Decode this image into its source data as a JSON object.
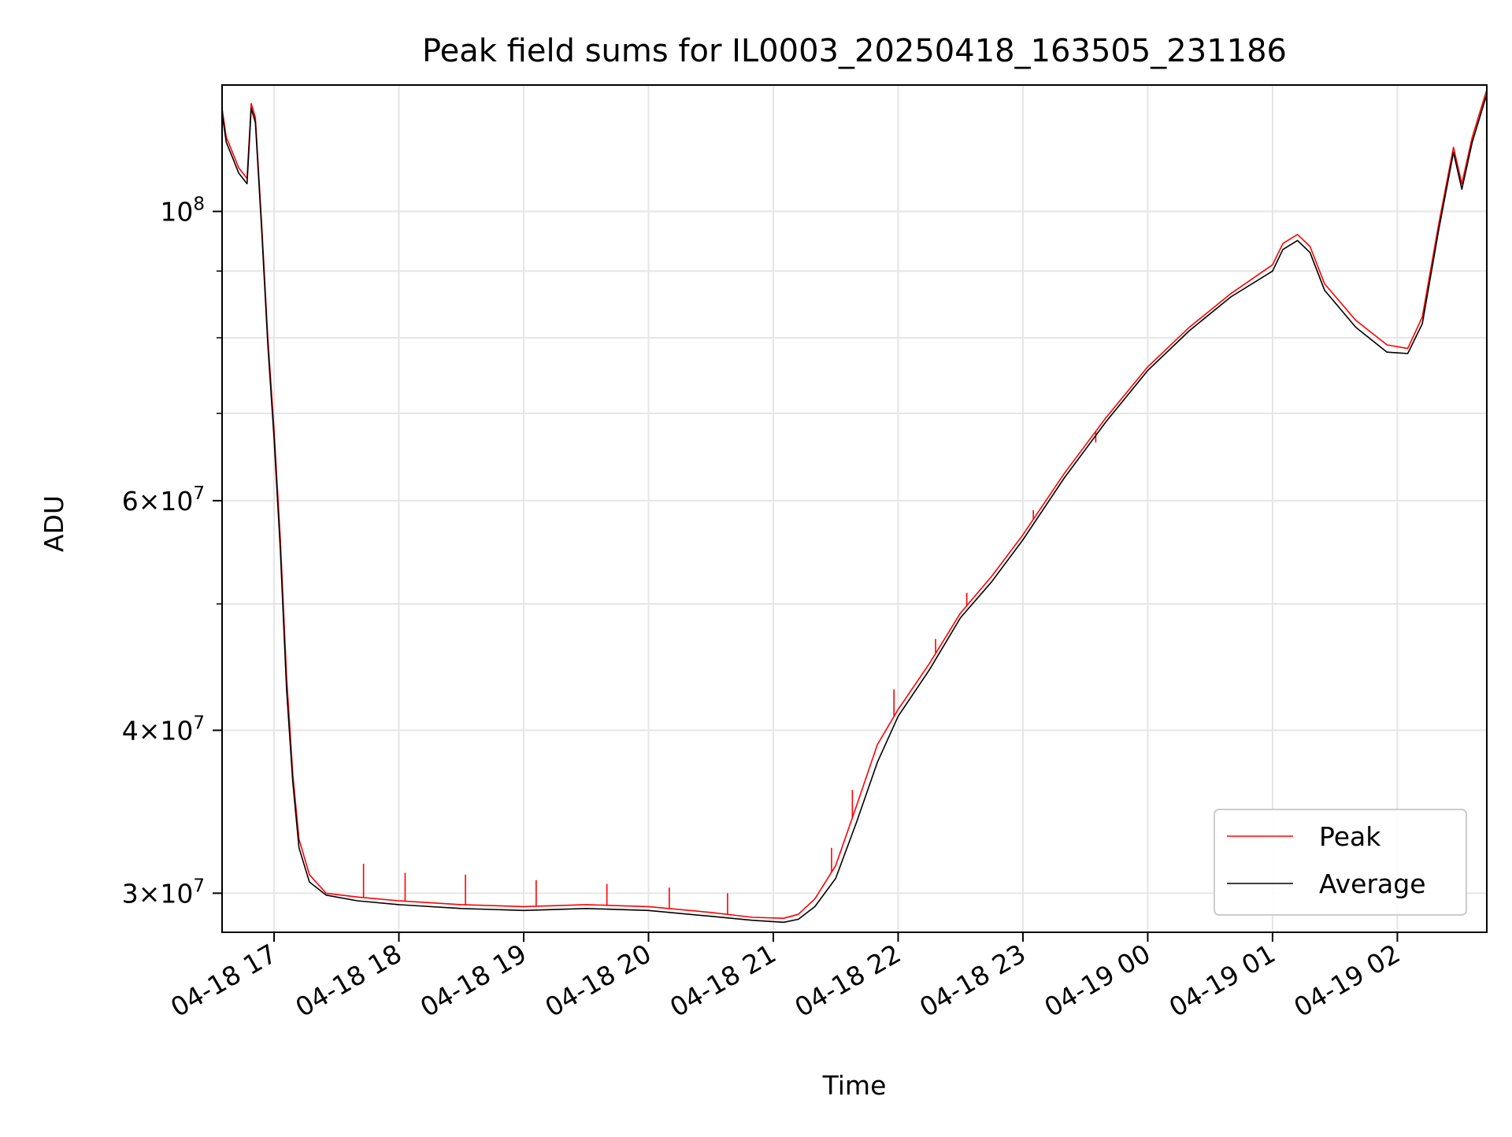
{
  "chart_data": {
    "type": "line",
    "title": "Peak field sums for IL0003_20250418_163505_231186",
    "xlabel": "Time",
    "ylabel": "ADU",
    "yscale": "log",
    "ylim": [
      28000000,
      125000000
    ],
    "xlim": [
      "2025-04-18 16:35",
      "2025-04-19 02:43"
    ],
    "grid": true,
    "legend_position": "lower right",
    "x_ticks": [
      {
        "t": "2025-04-18 17:00",
        "label": "04-18 17"
      },
      {
        "t": "2025-04-18 18:00",
        "label": "04-18 18"
      },
      {
        "t": "2025-04-18 19:00",
        "label": "04-18 19"
      },
      {
        "t": "2025-04-18 20:00",
        "label": "04-18 20"
      },
      {
        "t": "2025-04-18 21:00",
        "label": "04-18 21"
      },
      {
        "t": "2025-04-18 22:00",
        "label": "04-18 22"
      },
      {
        "t": "2025-04-18 23:00",
        "label": "04-18 23"
      },
      {
        "t": "2025-04-19 00:00",
        "label": "04-19 00"
      },
      {
        "t": "2025-04-19 01:00",
        "label": "04-19 01"
      },
      {
        "t": "2025-04-19 02:00",
        "label": "04-19 02"
      }
    ],
    "y_ticks": [
      {
        "value": 30000000,
        "mantissa": "3",
        "exponent": "7"
      },
      {
        "value": 40000000,
        "mantissa": "4",
        "exponent": "7"
      },
      {
        "value": 60000000,
        "mantissa": "6",
        "exponent": "7"
      },
      {
        "value": 100000000,
        "mantissa": "",
        "exponent": "8"
      }
    ],
    "y_minor_ticks": [
      50000000,
      70000000,
      80000000,
      90000000
    ],
    "series": [
      {
        "name": "Peak",
        "color": "#ff0000",
        "points": [
          [
            "2025-04-18 16:35",
            120000000
          ],
          [
            "2025-04-18 16:37",
            114000000
          ],
          [
            "2025-04-18 16:40",
            111000000
          ],
          [
            "2025-04-18 16:43",
            108000000
          ],
          [
            "2025-04-18 16:47",
            106000000
          ],
          [
            "2025-04-18 16:49",
            121000000
          ],
          [
            "2025-04-18 16:51",
            118000000
          ],
          [
            "2025-04-18 16:54",
            98000000
          ],
          [
            "2025-04-18 16:57",
            80000000
          ],
          [
            "2025-04-18 17:00",
            68000000
          ],
          [
            "2025-04-18 17:03",
            56000000
          ],
          [
            "2025-04-18 17:06",
            44000000
          ],
          [
            "2025-04-18 17:09",
            37000000
          ],
          [
            "2025-04-18 17:12",
            33000000
          ],
          [
            "2025-04-18 17:17",
            31000000
          ],
          [
            "2025-04-18 17:25",
            30000000
          ],
          [
            "2025-04-18 17:40",
            29800000
          ],
          [
            "2025-04-18 18:00",
            29600000
          ],
          [
            "2025-04-18 18:30",
            29400000
          ],
          [
            "2025-04-18 19:00",
            29300000
          ],
          [
            "2025-04-18 19:30",
            29400000
          ],
          [
            "2025-04-18 20:00",
            29300000
          ],
          [
            "2025-04-18 20:30",
            29000000
          ],
          [
            "2025-04-18 20:50",
            28750000
          ],
          [
            "2025-04-18 21:05",
            28700000
          ],
          [
            "2025-04-18 21:12",
            28900000
          ],
          [
            "2025-04-18 21:20",
            29700000
          ],
          [
            "2025-04-18 21:30",
            31500000
          ],
          [
            "2025-04-18 21:40",
            35000000
          ],
          [
            "2025-04-18 21:50",
            39000000
          ],
          [
            "2025-04-18 22:00",
            41500000
          ],
          [
            "2025-04-18 22:15",
            45000000
          ],
          [
            "2025-04-18 22:30",
            49200000
          ],
          [
            "2025-04-18 22:45",
            52500000
          ],
          [
            "2025-04-18 23:00",
            56500000
          ],
          [
            "2025-04-18 23:20",
            63000000
          ],
          [
            "2025-04-18 23:40",
            69500000
          ],
          [
            "2025-04-19 00:00",
            76000000
          ],
          [
            "2025-04-19 00:20",
            81500000
          ],
          [
            "2025-04-19 00:40",
            86500000
          ],
          [
            "2025-04-19 01:00",
            91000000
          ],
          [
            "2025-04-19 01:05",
            94500000
          ],
          [
            "2025-04-19 01:12",
            96000000
          ],
          [
            "2025-04-19 01:18",
            94000000
          ],
          [
            "2025-04-19 01:25",
            88000000
          ],
          [
            "2025-04-19 01:40",
            82500000
          ],
          [
            "2025-04-19 01:55",
            79000000
          ],
          [
            "2025-04-19 02:05",
            78500000
          ],
          [
            "2025-04-19 02:12",
            83000000
          ],
          [
            "2025-04-19 02:20",
            98000000
          ],
          [
            "2025-04-19 02:27",
            112000000
          ],
          [
            "2025-04-19 02:31",
            105000000
          ],
          [
            "2025-04-19 02:36",
            114000000
          ],
          [
            "2025-04-19 02:43",
            124000000
          ]
        ],
        "spikes": [
          [
            "2025-04-18 17:43",
            31600000
          ],
          [
            "2025-04-18 18:03",
            31100000
          ],
          [
            "2025-04-18 18:32",
            31000000
          ],
          [
            "2025-04-18 19:06",
            30700000
          ],
          [
            "2025-04-18 19:40",
            30500000
          ],
          [
            "2025-04-18 20:10",
            30300000
          ],
          [
            "2025-04-18 20:38",
            30000000
          ],
          [
            "2025-04-18 21:28",
            32500000
          ],
          [
            "2025-04-18 21:38",
            36000000
          ],
          [
            "2025-04-18 21:58",
            43000000
          ],
          [
            "2025-04-18 22:18",
            47000000
          ],
          [
            "2025-04-18 22:33",
            51000000
          ],
          [
            "2025-04-18 23:05",
            59000000
          ],
          [
            "2025-04-18 23:35",
            66500000
          ]
        ]
      },
      {
        "name": "Average",
        "color": "#000000",
        "points": [
          [
            "2025-04-18 16:35",
            119000000
          ],
          [
            "2025-04-18 16:37",
            113000000
          ],
          [
            "2025-04-18 16:40",
            110000000
          ],
          [
            "2025-04-18 16:43",
            107000000
          ],
          [
            "2025-04-18 16:47",
            105000000
          ],
          [
            "2025-04-18 16:49",
            120000000
          ],
          [
            "2025-04-18 16:51",
            117000000
          ],
          [
            "2025-04-18 16:54",
            97000000
          ],
          [
            "2025-04-18 16:57",
            79000000
          ],
          [
            "2025-04-18 17:00",
            67000000
          ],
          [
            "2025-04-18 17:03",
            55000000
          ],
          [
            "2025-04-18 17:06",
            43000000
          ],
          [
            "2025-04-18 17:09",
            36500000
          ],
          [
            "2025-04-18 17:12",
            32500000
          ],
          [
            "2025-04-18 17:17",
            30600000
          ],
          [
            "2025-04-18 17:25",
            29900000
          ],
          [
            "2025-04-18 17:40",
            29600000
          ],
          [
            "2025-04-18 18:00",
            29400000
          ],
          [
            "2025-04-18 18:30",
            29200000
          ],
          [
            "2025-04-18 19:00",
            29100000
          ],
          [
            "2025-04-18 19:30",
            29200000
          ],
          [
            "2025-04-18 20:00",
            29100000
          ],
          [
            "2025-04-18 20:30",
            28800000
          ],
          [
            "2025-04-18 20:50",
            28600000
          ],
          [
            "2025-04-18 21:05",
            28500000
          ],
          [
            "2025-04-18 21:12",
            28650000
          ],
          [
            "2025-04-18 21:20",
            29300000
          ],
          [
            "2025-04-18 21:30",
            30800000
          ],
          [
            "2025-04-18 21:40",
            34000000
          ],
          [
            "2025-04-18 21:50",
            37800000
          ],
          [
            "2025-04-18 22:00",
            41000000
          ],
          [
            "2025-04-18 22:15",
            44500000
          ],
          [
            "2025-04-18 22:30",
            48800000
          ],
          [
            "2025-04-18 22:45",
            52000000
          ],
          [
            "2025-04-18 23:00",
            56000000
          ],
          [
            "2025-04-18 23:20",
            62500000
          ],
          [
            "2025-04-18 23:40",
            69000000
          ],
          [
            "2025-04-19 00:00",
            75500000
          ],
          [
            "2025-04-19 00:20",
            81000000
          ],
          [
            "2025-04-19 00:40",
            86000000
          ],
          [
            "2025-04-19 01:00",
            90000000
          ],
          [
            "2025-04-19 01:05",
            93500000
          ],
          [
            "2025-04-19 01:12",
            95000000
          ],
          [
            "2025-04-19 01:18",
            93000000
          ],
          [
            "2025-04-19 01:25",
            87000000
          ],
          [
            "2025-04-19 01:40",
            81500000
          ],
          [
            "2025-04-19 01:55",
            78000000
          ],
          [
            "2025-04-19 02:05",
            77800000
          ],
          [
            "2025-04-19 02:12",
            82000000
          ],
          [
            "2025-04-19 02:20",
            97000000
          ],
          [
            "2025-04-19 02:27",
            111000000
          ],
          [
            "2025-04-19 02:31",
            104000000
          ],
          [
            "2025-04-19 02:36",
            113000000
          ],
          [
            "2025-04-19 02:43",
            123000000
          ]
        ]
      }
    ]
  }
}
